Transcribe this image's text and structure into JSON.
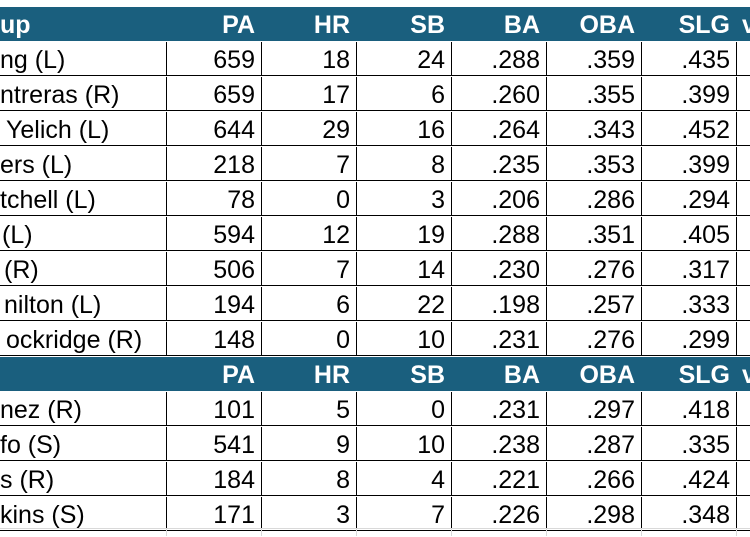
{
  "colors": {
    "header_bg": "#1a5f7e",
    "header_text": "#ffffff",
    "grid": "#000000"
  },
  "section1": {
    "header": [
      "up",
      "PA",
      "HR",
      "SB",
      "BA",
      "OBA",
      "SLG",
      "v"
    ],
    "rows": [
      [
        "ng (L)",
        "659",
        "18",
        "24",
        ".288",
        ".359",
        ".435"
      ],
      [
        "ntreras (R)",
        "659",
        "17",
        "6",
        ".260",
        ".355",
        ".399"
      ],
      [
        "Yelich (L)",
        "644",
        "29",
        "16",
        ".264",
        ".343",
        ".452"
      ],
      [
        "ers (L)",
        "218",
        "7",
        "8",
        ".235",
        ".353",
        ".399"
      ],
      [
        "tchell (L)",
        "78",
        "0",
        "3",
        ".206",
        ".286",
        ".294"
      ],
      [
        "(L)",
        "594",
        "12",
        "19",
        ".288",
        ".351",
        ".405"
      ],
      [
        "(R)",
        "506",
        "7",
        "14",
        ".230",
        ".276",
        ".317"
      ],
      [
        "nilton (L)",
        "194",
        "6",
        "22",
        ".198",
        ".257",
        ".333"
      ],
      [
        "ockridge (R)",
        "148",
        "0",
        "10",
        ".231",
        ".276",
        ".299"
      ]
    ]
  },
  "section2": {
    "header": [
      "",
      "PA",
      "HR",
      "SB",
      "BA",
      "OBA",
      "SLG",
      "v"
    ],
    "rows": [
      [
        "nez (R)",
        "101",
        "5",
        "0",
        ".231",
        ".297",
        ".418"
      ],
      [
        "fo (S)",
        "541",
        "9",
        "10",
        ".238",
        ".287",
        ".335"
      ],
      [
        "s (R)",
        "184",
        "8",
        "4",
        ".221",
        ".266",
        ".424"
      ],
      [
        "kins (S)",
        "171",
        "3",
        "7",
        ".226",
        ".298",
        ".348"
      ]
    ]
  }
}
